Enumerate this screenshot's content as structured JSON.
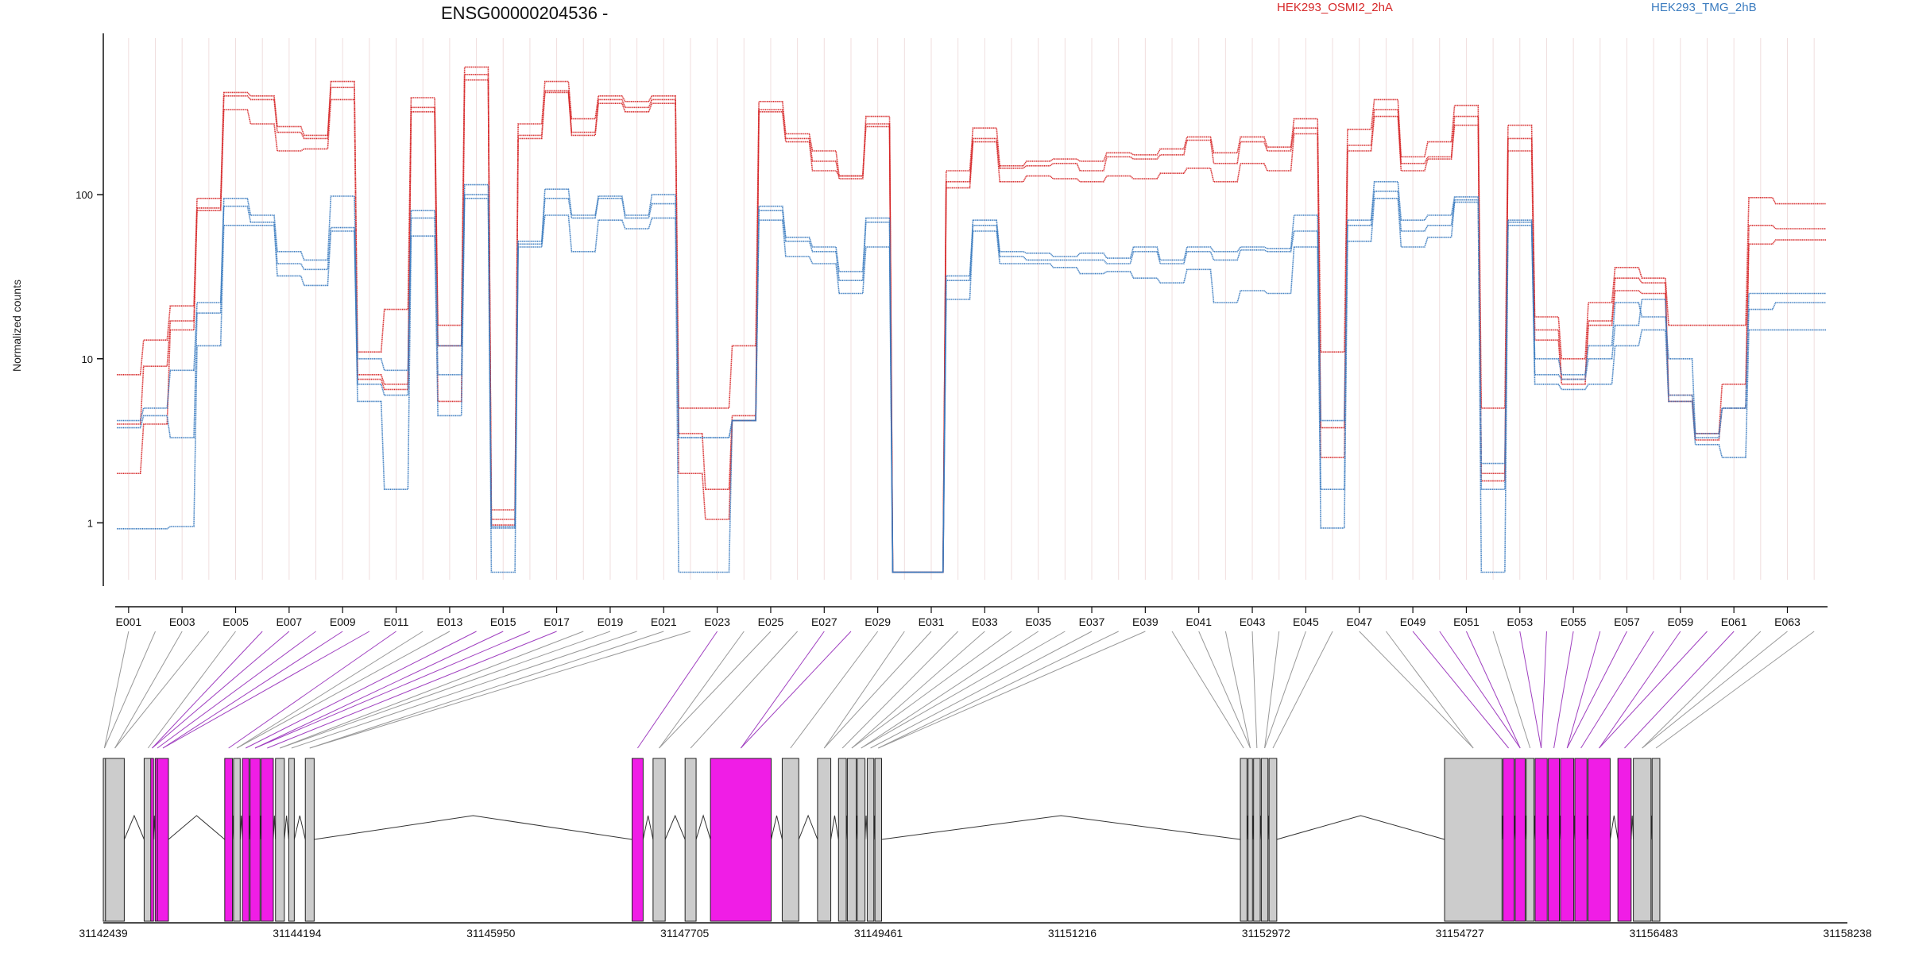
{
  "chart_data": {
    "type": "line",
    "title": "ENSG00000204536 -",
    "xlabel": "",
    "ylabel": "Normalized counts",
    "yscale": "log",
    "ylim": [
      0.45,
      900
    ],
    "y_ticks": [
      {
        "value": 1,
        "label": "1"
      },
      {
        "value": 10,
        "label": "10"
      },
      {
        "value": 100,
        "label": "100"
      }
    ],
    "grid": "vertical",
    "exon_count": 64,
    "exon_tick_labels": [
      "E001",
      "E003",
      "E005",
      "E007",
      "E009",
      "E011",
      "E013",
      "E015",
      "E017",
      "E019",
      "E021",
      "E023",
      "E025",
      "E027",
      "E029",
      "E031",
      "E033",
      "E035",
      "E037",
      "E039",
      "E041",
      "E043",
      "E045",
      "E047",
      "E049",
      "E051",
      "E053",
      "E055",
      "E057",
      "E059",
      "E061",
      "E063"
    ],
    "genomic_axis_ticks": [
      "31142439",
      "31144194",
      "31145950",
      "31147705",
      "31149461",
      "31151216",
      "31152972",
      "31154727",
      "31156483",
      "31158238"
    ],
    "genomic_range": [
      31142439,
      31158238
    ],
    "legend": [
      {
        "label": "HEK293_OSMI2_2hA",
        "color": "#d62728"
      },
      {
        "label": "HEK293_TMG_2hB",
        "color": "#3a7bbf"
      }
    ],
    "series": [
      {
        "name": "HEK293_OSMI2_2hA",
        "color": "#d62728",
        "replicate": 1,
        "values": [
          8,
          13,
          21,
          95,
          420,
          400,
          260,
          230,
          490,
          11,
          20,
          390,
          16,
          600,
          1.2,
          270,
          490,
          290,
          400,
          370,
          400,
          5,
          5,
          12,
          370,
          235,
          185,
          130,
          300,
          0.5,
          0.5,
          140,
          255,
          150,
          160,
          165,
          160,
          180,
          175,
          190,
          225,
          180,
          225,
          195,
          290,
          11,
          250,
          380,
          170,
          210,
          350,
          5,
          265,
          18,
          10,
          22,
          36,
          31,
          16,
          16,
          16,
          96,
          88,
          88
        ]
      },
      {
        "name": "HEK293_OSMI2_2hA",
        "color": "#d62728",
        "replicate": 2,
        "values": [
          4,
          9,
          17,
          83,
          400,
          380,
          240,
          220,
          450,
          8,
          7,
          340,
          12,
          540,
          1.05,
          230,
          430,
          240,
          380,
          340,
          380,
          3.5,
          1.6,
          4.5,
          330,
          220,
          160,
          125,
          270,
          0.5,
          0.5,
          120,
          220,
          145,
          150,
          155,
          140,
          170,
          165,
          175,
          215,
          155,
          210,
          185,
          255,
          3.8,
          200,
          330,
          155,
          170,
          300,
          2,
          220,
          15,
          7.5,
          17,
          31,
          29,
          6,
          3.5,
          7,
          65,
          62,
          62
        ]
      },
      {
        "name": "HEK293_OSMI2_2hA",
        "color": "#d62728",
        "replicate": 3,
        "values": [
          2,
          4,
          15,
          80,
          330,
          270,
          185,
          190,
          380,
          7.5,
          6.5,
          320,
          5.5,
          500,
          0.97,
          220,
          420,
          230,
          360,
          320,
          360,
          2,
          1.05,
          4.2,
          320,
          210,
          140,
          130,
          260,
          0.5,
          0.5,
          110,
          210,
          120,
          130,
          125,
          120,
          130,
          125,
          135,
          145,
          120,
          155,
          140,
          235,
          2.5,
          185,
          300,
          140,
          165,
          265,
          1.8,
          185,
          13,
          7,
          16,
          26,
          25,
          5.5,
          3.2,
          5,
          50,
          53,
          53
        ]
      },
      {
        "name": "HEK293_TMG_2hB",
        "color": "#3a7bbf",
        "replicate": 1,
        "values": [
          4.2,
          5,
          8.5,
          22,
          95,
          75,
          45,
          40,
          98,
          10,
          8.5,
          80,
          12,
          115,
          0.95,
          52,
          108,
          75,
          98,
          75,
          100,
          3.3,
          3.3,
          4.2,
          85,
          55,
          48,
          34,
          72,
          0.5,
          0.5,
          32,
          70,
          45,
          44,
          42,
          44,
          41,
          48,
          40,
          48,
          45,
          48,
          47,
          75,
          4.2,
          70,
          120,
          70,
          75,
          97,
          2.3,
          70,
          10,
          8,
          12,
          22,
          18,
          10,
          3.5,
          5,
          25,
          25,
          25
        ]
      },
      {
        "name": "HEK293_TMG_2hB",
        "color": "#3a7bbf",
        "replicate": 2,
        "values": [
          3.8,
          4.5,
          3.3,
          19,
          85,
          68,
          38,
          35,
          63,
          7,
          6,
          72,
          8,
          100,
          0.93,
          50,
          95,
          72,
          95,
          72,
          88,
          3.3,
          3.3,
          4.2,
          80,
          52,
          45,
          30,
          68,
          0.5,
          0.5,
          30,
          65,
          42,
          40,
          40,
          40,
          38,
          45,
          38,
          45,
          40,
          46,
          45,
          60,
          1.6,
          65,
          105,
          60,
          65,
          93,
          1.6,
          68,
          8,
          7.5,
          10,
          16,
          23,
          6,
          3.3,
          5,
          20,
          22,
          22
        ]
      },
      {
        "name": "HEK293_TMG_2hB",
        "color": "#3a7bbf",
        "replicate": 3,
        "values": [
          0.92,
          0.92,
          0.95,
          12,
          65,
          65,
          32,
          28,
          60,
          5.5,
          1.6,
          56,
          4.5,
          95,
          0.5,
          48,
          75,
          45,
          70,
          62,
          72,
          0.5,
          0.5,
          4.2,
          70,
          42,
          38,
          25,
          48,
          0.5,
          0.5,
          23,
          60,
          38,
          38,
          36,
          33,
          34,
          31,
          29,
          35,
          22,
          26,
          25,
          48,
          0.93,
          52,
          95,
          48,
          55,
          90,
          0.5,
          65,
          7,
          6.5,
          7,
          12,
          15,
          5.5,
          3,
          2.5,
          15,
          15,
          15
        ]
      }
    ]
  }
}
